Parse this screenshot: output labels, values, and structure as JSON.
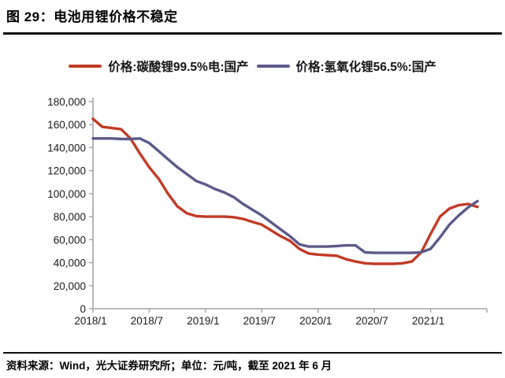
{
  "figure": {
    "title": "图 29：电池用锂价格不稳定",
    "source_note": "资料来源：Wind，光大证券研究所；单位：元/吨，截至 2021 年 6 月"
  },
  "legend": [
    {
      "label": "价格:碳酸锂99.5%电:国产",
      "color": "#c23b26"
    },
    {
      "label": "价格:氢氧化锂56.5%:国产",
      "color": "#5c5a8a"
    }
  ],
  "colors": {
    "carbonate_line": "#c23b26",
    "hydroxide_line": "#5c5a8a",
    "axis": "#a3a3a3",
    "tick_text": "#1a1a1a",
    "rule": "#0d0d12"
  },
  "chart_data": {
    "type": "line",
    "title": "电池用锂价格不稳定",
    "unit": "元/吨",
    "grid": false,
    "legend_position": "top",
    "ylim": [
      0,
      180000
    ],
    "ytick_step": 20000,
    "xtick_every": 6,
    "xtick_labels": [
      "2018/1",
      "2018/7",
      "2019/1",
      "2019/7",
      "2020/1",
      "2020/7",
      "2021/1"
    ],
    "x": [
      "2018/1",
      "2018/2",
      "2018/3",
      "2018/4",
      "2018/5",
      "2018/6",
      "2018/7",
      "2018/8",
      "2018/9",
      "2018/10",
      "2018/11",
      "2018/12",
      "2019/1",
      "2019/2",
      "2019/3",
      "2019/4",
      "2019/5",
      "2019/6",
      "2019/7",
      "2019/8",
      "2019/9",
      "2019/10",
      "2019/11",
      "2019/12",
      "2020/1",
      "2020/2",
      "2020/3",
      "2020/4",
      "2020/5",
      "2020/6",
      "2020/7",
      "2020/8",
      "2020/9",
      "2020/10",
      "2020/11",
      "2020/12",
      "2021/1",
      "2021/2",
      "2021/3",
      "2021/4",
      "2021/5",
      "2021/6"
    ],
    "series": [
      {
        "name": "价格:碳酸锂99.5%电:国产",
        "color": "#c23b26",
        "values": [
          165000,
          158000,
          157000,
          156000,
          148000,
          135000,
          123000,
          113000,
          100000,
          89000,
          83000,
          80500,
          80000,
          80000,
          80000,
          79500,
          78000,
          75500,
          73000,
          68000,
          63000,
          59000,
          52000,
          48000,
          47000,
          46500,
          46000,
          43000,
          41000,
          39500,
          39000,
          39000,
          39000,
          39500,
          41000,
          49000,
          65000,
          80000,
          87000,
          90000,
          91000,
          88500
        ]
      },
      {
        "name": "价格:氢氧化锂56.5%:国产",
        "color": "#5c5a8a",
        "values": [
          148000,
          148000,
          148000,
          147500,
          147500,
          148000,
          144000,
          137000,
          130000,
          123000,
          117000,
          111000,
          108000,
          104000,
          101000,
          97000,
          91000,
          86000,
          81000,
          75000,
          69000,
          63000,
          56000,
          54000,
          54000,
          54000,
          54500,
          55000,
          55000,
          49000,
          48500,
          48500,
          48500,
          48500,
          48500,
          49000,
          52000,
          62000,
          73000,
          81000,
          88000,
          93500
        ]
      }
    ]
  }
}
